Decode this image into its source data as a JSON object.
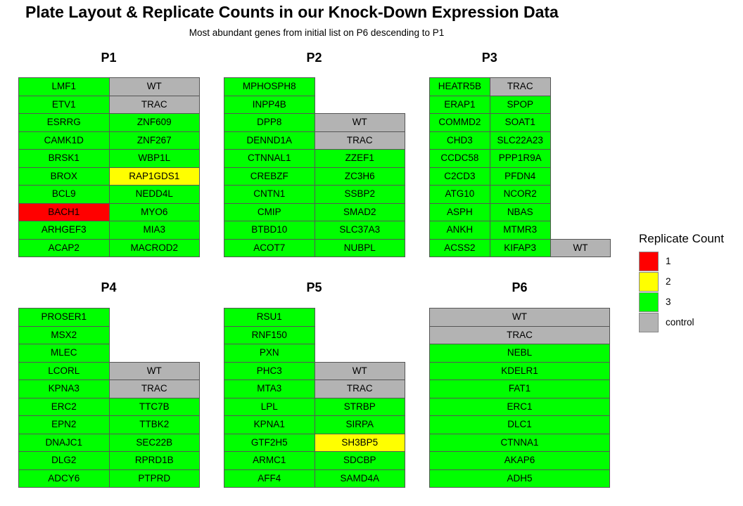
{
  "chart_data": {
    "type": "table",
    "title": "Plate Layout & Replicate Counts in our Knock-Down Expression Data",
    "subtitle": "Most abundant genes from initial list on P6 descending to P1",
    "colors": {
      "1": "#ff0000",
      "2": "#ffff00",
      "3": "#00ff00",
      "control": "#b3b3b3"
    },
    "legend": {
      "title": "Replicate Count",
      "placement": "right",
      "items": [
        {
          "key": "1",
          "label": "1"
        },
        {
          "key": "2",
          "label": "2"
        },
        {
          "key": "3",
          "label": "3"
        },
        {
          "key": "control",
          "label": "control"
        }
      ]
    },
    "plates": [
      {
        "name": "P1",
        "columns": [
          [
            {
              "gene": "LMF1",
              "count": "3"
            },
            {
              "gene": "ETV1",
              "count": "3"
            },
            {
              "gene": "ESRRG",
              "count": "3"
            },
            {
              "gene": "CAMK1D",
              "count": "3"
            },
            {
              "gene": "BRSK1",
              "count": "3"
            },
            {
              "gene": "BROX",
              "count": "3"
            },
            {
              "gene": "BCL9",
              "count": "3"
            },
            {
              "gene": "BACH1",
              "count": "1"
            },
            {
              "gene": "ARHGEF3",
              "count": "3"
            },
            {
              "gene": "ACAP2",
              "count": "3"
            }
          ],
          [
            {
              "gene": "WT",
              "count": "control"
            },
            {
              "gene": "TRAC",
              "count": "control"
            },
            {
              "gene": "ZNF609",
              "count": "3"
            },
            {
              "gene": "ZNF267",
              "count": "3"
            },
            {
              "gene": "WBP1L",
              "count": "3"
            },
            {
              "gene": "RAP1GDS1",
              "count": "2"
            },
            {
              "gene": "NEDD4L",
              "count": "3"
            },
            {
              "gene": "MYO6",
              "count": "3"
            },
            {
              "gene": "MIA3",
              "count": "3"
            },
            {
              "gene": "MACROD2",
              "count": "3"
            }
          ]
        ]
      },
      {
        "name": "P2",
        "columns": [
          [
            {
              "gene": "MPHOSPH8",
              "count": "3"
            },
            {
              "gene": "INPP4B",
              "count": "3"
            },
            {
              "gene": "DPP8",
              "count": "3"
            },
            {
              "gene": "DENND1A",
              "count": "3"
            },
            {
              "gene": "CTNNAL1",
              "count": "3"
            },
            {
              "gene": "CREBZF",
              "count": "3"
            },
            {
              "gene": "CNTN1",
              "count": "3"
            },
            {
              "gene": "CMIP",
              "count": "3"
            },
            {
              "gene": "BTBD10",
              "count": "3"
            },
            {
              "gene": "ACOT7",
              "count": "3"
            }
          ],
          [
            null,
            null,
            {
              "gene": "WT",
              "count": "control"
            },
            {
              "gene": "TRAC",
              "count": "control"
            },
            {
              "gene": "ZZEF1",
              "count": "3"
            },
            {
              "gene": "ZC3H6",
              "count": "3"
            },
            {
              "gene": "SSBP2",
              "count": "3"
            },
            {
              "gene": "SMAD2",
              "count": "3"
            },
            {
              "gene": "SLC37A3",
              "count": "3"
            },
            {
              "gene": "NUBPL",
              "count": "3"
            }
          ]
        ]
      },
      {
        "name": "P3",
        "columns": [
          [
            {
              "gene": "HEATR5B",
              "count": "3"
            },
            {
              "gene": "ERAP1",
              "count": "3"
            },
            {
              "gene": "COMMD2",
              "count": "3"
            },
            {
              "gene": "CHD3",
              "count": "3"
            },
            {
              "gene": "CCDC58",
              "count": "3"
            },
            {
              "gene": "C2CD3",
              "count": "3"
            },
            {
              "gene": "ATG10",
              "count": "3"
            },
            {
              "gene": "ASPH",
              "count": "3"
            },
            {
              "gene": "ANKH",
              "count": "3"
            },
            {
              "gene": "ACSS2",
              "count": "3"
            }
          ],
          [
            {
              "gene": "TRAC",
              "count": "control"
            },
            {
              "gene": "SPOP",
              "count": "3"
            },
            {
              "gene": "SOAT1",
              "count": "3"
            },
            {
              "gene": "SLC22A23",
              "count": "3"
            },
            {
              "gene": "PPP1R9A",
              "count": "3"
            },
            {
              "gene": "PFDN4",
              "count": "3"
            },
            {
              "gene": "NCOR2",
              "count": "3"
            },
            {
              "gene": "NBAS",
              "count": "3"
            },
            {
              "gene": "MTMR3",
              "count": "3"
            },
            {
              "gene": "KIFAP3",
              "count": "3"
            }
          ],
          [
            null,
            null,
            null,
            null,
            null,
            null,
            null,
            null,
            null,
            {
              "gene": "WT",
              "count": "control"
            }
          ]
        ]
      },
      {
        "name": "P4",
        "columns": [
          [
            {
              "gene": "PROSER1",
              "count": "3"
            },
            {
              "gene": "MSX2",
              "count": "3"
            },
            {
              "gene": "MLEC",
              "count": "3"
            },
            {
              "gene": "LCORL",
              "count": "3"
            },
            {
              "gene": "KPNA3",
              "count": "3"
            },
            {
              "gene": "ERC2",
              "count": "3"
            },
            {
              "gene": "EPN2",
              "count": "3"
            },
            {
              "gene": "DNAJC1",
              "count": "3"
            },
            {
              "gene": "DLG2",
              "count": "3"
            },
            {
              "gene": "ADCY6",
              "count": "3"
            }
          ],
          [
            null,
            null,
            null,
            {
              "gene": "WT",
              "count": "control"
            },
            {
              "gene": "TRAC",
              "count": "control"
            },
            {
              "gene": "TTC7B",
              "count": "3"
            },
            {
              "gene": "TTBK2",
              "count": "3"
            },
            {
              "gene": "SEC22B",
              "count": "3"
            },
            {
              "gene": "RPRD1B",
              "count": "3"
            },
            {
              "gene": "PTPRD",
              "count": "3"
            }
          ]
        ]
      },
      {
        "name": "P5",
        "columns": [
          [
            {
              "gene": "RSU1",
              "count": "3"
            },
            {
              "gene": "RNF150",
              "count": "3"
            },
            {
              "gene": "PXN",
              "count": "3"
            },
            {
              "gene": "PHC3",
              "count": "3"
            },
            {
              "gene": "MTA3",
              "count": "3"
            },
            {
              "gene": "LPL",
              "count": "3"
            },
            {
              "gene": "KPNA1",
              "count": "3"
            },
            {
              "gene": "GTF2H5",
              "count": "3"
            },
            {
              "gene": "ARMC1",
              "count": "3"
            },
            {
              "gene": "AFF4",
              "count": "3"
            }
          ],
          [
            null,
            null,
            null,
            {
              "gene": "WT",
              "count": "control"
            },
            {
              "gene": "TRAC",
              "count": "control"
            },
            {
              "gene": "STRBP",
              "count": "3"
            },
            {
              "gene": "SIRPA",
              "count": "3"
            },
            {
              "gene": "SH3BP5",
              "count": "2"
            },
            {
              "gene": "SDCBP",
              "count": "3"
            },
            {
              "gene": "SAMD4A",
              "count": "3"
            }
          ]
        ]
      },
      {
        "name": "P6",
        "columns": [
          [
            {
              "gene": "WT",
              "count": "control"
            },
            {
              "gene": "TRAC",
              "count": "control"
            },
            {
              "gene": "NEBL",
              "count": "3"
            },
            {
              "gene": "KDELR1",
              "count": "3"
            },
            {
              "gene": "FAT1",
              "count": "3"
            },
            {
              "gene": "ERC1",
              "count": "3"
            },
            {
              "gene": "DLC1",
              "count": "3"
            },
            {
              "gene": "CTNNA1",
              "count": "3"
            },
            {
              "gene": "AKAP6",
              "count": "3"
            },
            {
              "gene": "ADH5",
              "count": "3"
            }
          ]
        ]
      }
    ]
  }
}
